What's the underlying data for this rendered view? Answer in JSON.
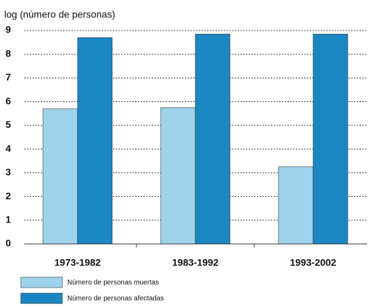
{
  "chart_data": {
    "type": "bar",
    "y_axis_label": "log (número de personas)",
    "categories": [
      "1973-1982",
      "1983-1992",
      "1993-2002"
    ],
    "series": [
      {
        "name": "Número de personas muertas",
        "color": "#9fd3ec",
        "values": [
          5.7,
          5.75,
          3.25
        ]
      },
      {
        "name": "Número de personas afectadas",
        "color": "#1a87c2",
        "values": [
          8.7,
          8.85,
          8.85
        ]
      }
    ],
    "ylim": [
      0,
      9
    ],
    "yticks": [
      0,
      1,
      2,
      3,
      4,
      5,
      6,
      7,
      8,
      9
    ],
    "grid": true
  }
}
